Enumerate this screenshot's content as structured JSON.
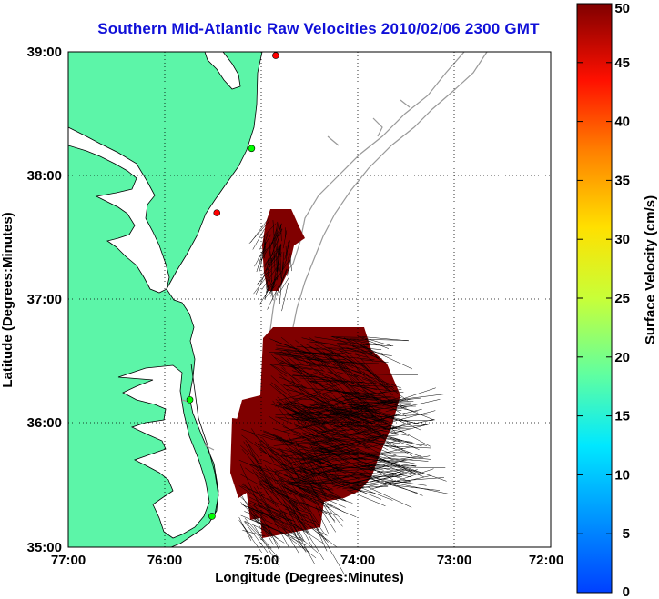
{
  "title": "Southern Mid-Atlantic Raw Velocities 2010/02/06 2300 GMT",
  "map": {
    "xlabel": "Longitude (Degrees:Minutes)",
    "ylabel": "Latitude (Degrees:Minutes)",
    "lon_ticks": [
      "77:00",
      "76:00",
      "75:00",
      "74:00",
      "73:00",
      "72:00"
    ],
    "lat_ticks": [
      "39:00",
      "38:00",
      "37:00",
      "36:00",
      "35:00"
    ],
    "lon_range": [
      -77,
      -72
    ],
    "lat_range": [
      35,
      39
    ],
    "grid": true,
    "colors": {
      "land": "#5cf5a8",
      "water": "#ffffff",
      "vectors": "#000000",
      "fill": "#800000",
      "bathymetry": "#999999"
    }
  },
  "colorbar": {
    "label": "Surface Velocity (cm/s)",
    "ticks": [
      "0",
      "5",
      "10",
      "15",
      "20",
      "25",
      "30",
      "35",
      "40",
      "45",
      "50"
    ],
    "range": [
      0,
      50
    ],
    "colormap": "jet"
  },
  "stations": [
    {
      "lon": -74.85,
      "lat": 38.97,
      "color": "#ff0000"
    },
    {
      "lon": -75.1,
      "lat": 38.22,
      "color": "#00ff00"
    },
    {
      "lon": -75.46,
      "lat": 37.7,
      "color": "#ff0000"
    },
    {
      "lon": -75.74,
      "lat": 36.19,
      "color": "#00ff00"
    },
    {
      "lon": -75.51,
      "lat": 35.25,
      "color": "#00ff00"
    }
  ]
}
